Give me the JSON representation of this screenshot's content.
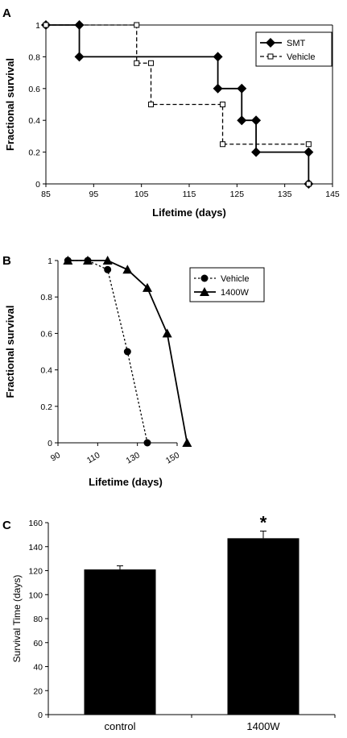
{
  "chart_data": [
    {
      "panel": "A",
      "type": "line",
      "step": true,
      "xlabel": "Lifetime (days)",
      "ylabel": "Fractional survival",
      "xlim": [
        85,
        145
      ],
      "ylim": [
        0,
        1
      ],
      "xticks": [
        85,
        95,
        105,
        115,
        125,
        135,
        145
      ],
      "yticks": [
        0,
        0.2,
        0.4,
        0.6,
        0.8,
        1
      ],
      "legend": "top-right",
      "grid": false,
      "series": [
        {
          "name": "SMT",
          "style": "solid",
          "marker": "diamond",
          "color": "#000000",
          "points": [
            [
              85,
              1
            ],
            [
              92,
              1
            ],
            [
              92,
              0.8
            ],
            [
              121,
              0.8
            ],
            [
              121,
              0.6
            ],
            [
              126,
              0.6
            ],
            [
              126,
              0.4
            ],
            [
              129,
              0.4
            ],
            [
              129,
              0.2
            ],
            [
              140,
              0.2
            ],
            [
              140,
              0
            ]
          ]
        },
        {
          "name": "Vehicle",
          "style": "dashed",
          "marker": "open-square",
          "color": "#000000",
          "points": [
            [
              85,
              1
            ],
            [
              104,
              1
            ],
            [
              104,
              0.76
            ],
            [
              107,
              0.76
            ],
            [
              107,
              0.5
            ],
            [
              122,
              0.5
            ],
            [
              122,
              0.25
            ],
            [
              140,
              0.25
            ],
            [
              140,
              0
            ]
          ]
        }
      ]
    },
    {
      "panel": "B",
      "type": "line",
      "xlabel": "Lifetime (days)",
      "ylabel": "Fractional survival",
      "xlim": [
        90,
        150
      ],
      "ylim": [
        0,
        1
      ],
      "xticks": [
        90,
        110,
        130,
        150
      ],
      "yticks": [
        0,
        0.2,
        0.4,
        0.6,
        0.8,
        1
      ],
      "legend": "top-right",
      "grid": false,
      "series": [
        {
          "name": "Vehicle",
          "style": "dotted",
          "marker": "circle",
          "color": "#000000",
          "points": [
            [
              95,
              1
            ],
            [
              105,
              1
            ],
            [
              115,
              0.95
            ],
            [
              125,
              0.5
            ],
            [
              135,
              0
            ]
          ]
        },
        {
          "name": "1400W",
          "style": "solid",
          "marker": "triangle",
          "color": "#000000",
          "points": [
            [
              95,
              1
            ],
            [
              105,
              1
            ],
            [
              115,
              1
            ],
            [
              125,
              0.95
            ],
            [
              135,
              0.85
            ],
            [
              145,
              0.6
            ],
            [
              155,
              0
            ]
          ]
        }
      ]
    },
    {
      "panel": "C",
      "type": "bar",
      "ylabel": "Survival Time (days)",
      "xlabel": "",
      "ylim": [
        0,
        160
      ],
      "yticks": [
        0,
        20,
        40,
        60,
        80,
        100,
        120,
        140,
        160
      ],
      "categories": [
        "control",
        "1400W"
      ],
      "values": [
        121,
        147
      ],
      "errors": [
        3,
        6
      ],
      "annotations": [
        "",
        "*"
      ],
      "color": "#000000",
      "grid": false
    }
  ]
}
